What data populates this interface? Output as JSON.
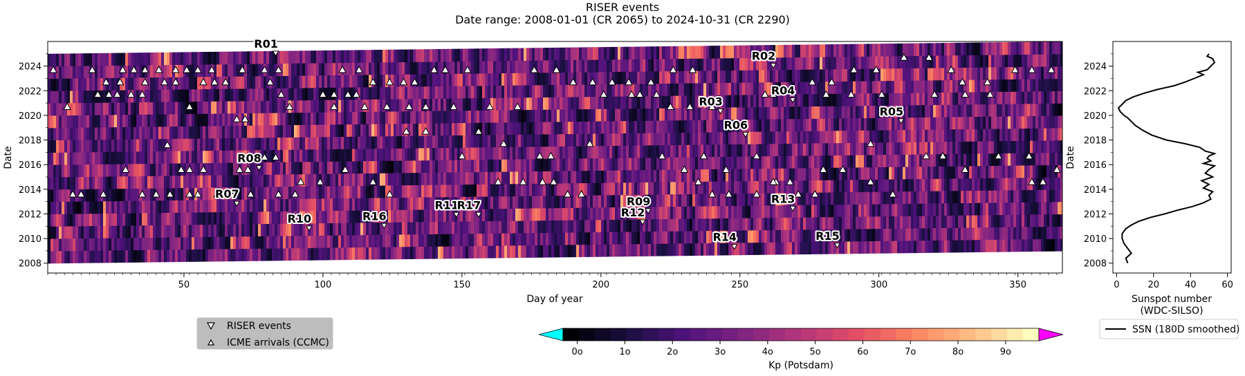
{
  "title_line1": "RISER events",
  "title_line2": "Date range: 2008-01-01 (CR 2065) to 2024-10-31 (CR 2290)",
  "colors": {
    "kp_low": "#000004",
    "kp_high": "#fcfdbf",
    "under": "#00ffff",
    "over": "#ff00ff",
    "ssn_line": "#000000",
    "legend_bg": "#bdbdbd"
  },
  "chart_data": [
    {
      "type": "heatmap",
      "name": "Kp heatmap with events",
      "xlabel": "Day of year",
      "ylabel": "Date",
      "xlim": [
        1,
        366
      ],
      "ylim": [
        2007.2,
        2026.0
      ],
      "x_ticks": [
        50,
        100,
        150,
        200,
        250,
        300,
        350
      ],
      "x_tick_labels": [
        "50",
        "100",
        "150",
        "200",
        "250",
        "300",
        "350"
      ],
      "y_ticks": [
        2008,
        2010,
        2012,
        2014,
        2016,
        2018,
        2020,
        2022,
        2024
      ],
      "y_tick_labels": [
        "2008",
        "2010",
        "2012",
        "2014",
        "2016",
        "2018",
        "2020",
        "2022",
        "2024"
      ],
      "grid": false,
      "riser_events": [
        {
          "label": "R01",
          "day": 83,
          "year": 2025.0
        },
        {
          "label": "R02",
          "day": 262,
          "year": 2024.0
        },
        {
          "label": "R03",
          "day": 243,
          "year": 2020.3
        },
        {
          "label": "R04",
          "day": 269,
          "year": 2021.2
        },
        {
          "label": "R05",
          "day": 308,
          "year": 2019.5
        },
        {
          "label": "R06",
          "day": 252,
          "year": 2018.4
        },
        {
          "label": "R07",
          "day": 69,
          "year": 2012.8
        },
        {
          "label": "R08",
          "day": 77,
          "year": 2015.7
        },
        {
          "label": "R09",
          "day": 217,
          "year": 2012.2
        },
        {
          "label": "R10",
          "day": 95,
          "year": 2010.8
        },
        {
          "label": "R11",
          "day": 148,
          "year": 2011.9
        },
        {
          "label": "R12",
          "day": 215,
          "year": 2011.3
        },
        {
          "label": "R13",
          "day": 269,
          "year": 2012.4
        },
        {
          "label": "R14",
          "day": 248,
          "year": 2009.3
        },
        {
          "label": "R15",
          "day": 285,
          "year": 2009.4
        },
        {
          "label": "R16",
          "day": 122,
          "year": 2011.0
        },
        {
          "label": "R17",
          "day": 156,
          "year": 2011.9
        }
      ],
      "icme_arrivals": [
        [
          3,
          2023.7
        ],
        [
          10,
          2013.6
        ],
        [
          13,
          2013.6
        ],
        [
          17,
          2023.7
        ],
        [
          22,
          2022.7
        ],
        [
          27,
          2022.7
        ],
        [
          19,
          2021.7
        ],
        [
          23,
          2021.7
        ],
        [
          28,
          2023.7
        ],
        [
          32,
          2023.7
        ],
        [
          36,
          2023.7
        ],
        [
          41,
          2023.7
        ],
        [
          47,
          2023.7
        ],
        [
          51,
          2023.7
        ],
        [
          55,
          2023.7
        ],
        [
          60,
          2023.7
        ],
        [
          8,
          2020.7
        ],
        [
          36,
          2022.7
        ],
        [
          43,
          2022.7
        ],
        [
          47,
          2022.7
        ],
        [
          57,
          2022.7
        ],
        [
          61,
          2022.7
        ],
        [
          65,
          2022.7
        ],
        [
          71,
          2023.7
        ],
        [
          79,
          2023.7
        ],
        [
          84,
          2023.7
        ],
        [
          26,
          2021.7
        ],
        [
          31,
          2021.7
        ],
        [
          35,
          2021.7
        ],
        [
          52,
          2020.7
        ],
        [
          69,
          2019.7
        ],
        [
          72,
          2019.7
        ],
        [
          81,
          2022.7
        ],
        [
          85,
          2021.7
        ],
        [
          88,
          2020.7
        ],
        [
          29,
          2015.6
        ],
        [
          21,
          2013.6
        ],
        [
          35,
          2013.6
        ],
        [
          40,
          2013.6
        ],
        [
          45,
          2013.6
        ],
        [
          52,
          2013.6
        ],
        [
          55,
          2013.6
        ],
        [
          62,
          2013.6
        ],
        [
          67,
          2013.6
        ],
        [
          74,
          2013.6
        ],
        [
          84,
          2013.6
        ],
        [
          90,
          2013.6
        ],
        [
          44,
          2017.6
        ],
        [
          49,
          2015.6
        ],
        [
          52,
          2015.6
        ],
        [
          57,
          2015.6
        ],
        [
          70,
          2015.6
        ],
        [
          73,
          2015.6
        ],
        [
          79,
          2016.6
        ],
        [
          83,
          2016.6
        ],
        [
          92,
          2014.6
        ],
        [
          99,
          2014.6
        ],
        [
          100,
          2021.7
        ],
        [
          104,
          2021.7
        ],
        [
          109,
          2021.7
        ],
        [
          112,
          2021.7
        ],
        [
          107,
          2023.7
        ],
        [
          113,
          2023.7
        ],
        [
          118,
          2022.7
        ],
        [
          124,
          2022.7
        ],
        [
          129,
          2022.7
        ],
        [
          133,
          2022.7
        ],
        [
          140,
          2023.7
        ],
        [
          144,
          2023.7
        ],
        [
          152,
          2023.7
        ],
        [
          104,
          2020.7
        ],
        [
          115,
          2020.7
        ],
        [
          123,
          2020.7
        ],
        [
          131,
          2020.7
        ],
        [
          137,
          2020.7
        ],
        [
          147,
          2020.7
        ],
        [
          160,
          2020.7
        ],
        [
          170,
          2020.7
        ],
        [
          130,
          2018.7
        ],
        [
          137,
          2018.7
        ],
        [
          150,
          2016.7
        ],
        [
          156,
          2018.7
        ],
        [
          165,
          2017.7
        ],
        [
          178,
          2016.7
        ],
        [
          182,
          2016.7
        ],
        [
          196,
          2017.7
        ],
        [
          108,
          2015.6
        ],
        [
          118,
          2014.6
        ],
        [
          124,
          2013.6
        ],
        [
          163,
          2014.6
        ],
        [
          172,
          2014.6
        ],
        [
          179,
          2014.6
        ],
        [
          183,
          2014.6
        ],
        [
          188,
          2013.6
        ],
        [
          193,
          2013.6
        ],
        [
          176,
          2023.7
        ],
        [
          184,
          2023.7
        ],
        [
          190,
          2022.7
        ],
        [
          197,
          2022.7
        ],
        [
          204,
          2022.7
        ],
        [
          210,
          2022.7
        ],
        [
          218,
          2022.7
        ],
        [
          226,
          2023.7
        ],
        [
          233,
          2023.7
        ],
        [
          201,
          2021.7
        ],
        [
          211,
          2021.7
        ],
        [
          214,
          2021.7
        ],
        [
          220,
          2021.7
        ],
        [
          225,
          2020.7
        ],
        [
          232,
          2020.7
        ],
        [
          240,
          2020.7
        ],
        [
          259,
          2021.7
        ],
        [
          262,
          2021.7
        ],
        [
          222,
          2016.7
        ],
        [
          230,
          2015.6
        ],
        [
          237,
          2016.7
        ],
        [
          245,
          2015.6
        ],
        [
          256,
          2016.7
        ],
        [
          263,
          2014.6
        ],
        [
          268,
          2014.6
        ],
        [
          280,
          2015.6
        ],
        [
          287,
          2015.6
        ],
        [
          235,
          2014.6
        ],
        [
          240,
          2013.6
        ],
        [
          246,
          2013.6
        ],
        [
          256,
          2013.6
        ],
        [
          262,
          2014.6
        ],
        [
          271,
          2013.6
        ],
        [
          277,
          2013.6
        ],
        [
          297,
          2014.6
        ],
        [
          305,
          2013.6
        ],
        [
          276,
          2022.7
        ],
        [
          283,
          2022.7
        ],
        [
          291,
          2023.7
        ],
        [
          299,
          2023.7
        ],
        [
          309,
          2024.7
        ],
        [
          318,
          2024.7
        ],
        [
          326,
          2023.7
        ],
        [
          330,
          2022.7
        ],
        [
          339,
          2022.7
        ],
        [
          281,
          2021.7
        ],
        [
          290,
          2021.7
        ],
        [
          301,
          2021.7
        ],
        [
          320,
          2021.7
        ],
        [
          331,
          2021.7
        ],
        [
          340,
          2021.7
        ],
        [
          349,
          2023.7
        ],
        [
          355,
          2023.7
        ],
        [
          362,
          2023.7
        ],
        [
          297,
          2017.7
        ],
        [
          317,
          2016.7
        ],
        [
          323,
          2016.7
        ],
        [
          331,
          2015.6
        ],
        [
          343,
          2016.7
        ],
        [
          354,
          2016.7
        ],
        [
          355,
          2014.6
        ],
        [
          364,
          2015.6
        ],
        [
          359,
          2014.6
        ]
      ]
    },
    {
      "type": "line",
      "name": "SSN side panel",
      "xlabel": "Sunspot number",
      "xlabel2": "(WDC-SILSO)",
      "ylabel": "Date",
      "xlim": [
        -2,
        62
      ],
      "ylim": [
        2007.2,
        2026.0
      ],
      "x_ticks": [
        0,
        20,
        40,
        60
      ],
      "x_tick_labels": [
        "0",
        "20",
        "40",
        "60"
      ],
      "y_ticks": [
        2008,
        2010,
        2012,
        2014,
        2016,
        2018,
        2020,
        2022,
        2024
      ],
      "y_tick_labels": [
        "2008",
        "2010",
        "2012",
        "2014",
        "2016",
        "2018",
        "2020",
        "2022",
        "2024"
      ],
      "series": [
        {
          "name": "SSN (180D smoothed)",
          "x": [
            6,
            5,
            8,
            6,
            4,
            3,
            3,
            5,
            8,
            12,
            18,
            26,
            33,
            41,
            47,
            51,
            50,
            52,
            47,
            50,
            46,
            52,
            48,
            50,
            53,
            47,
            51,
            49,
            50,
            53,
            48,
            45,
            37,
            27,
            19,
            14,
            10,
            8,
            6,
            4,
            2,
            1,
            3,
            5,
            9,
            15,
            22,
            31,
            37,
            42,
            47,
            44,
            49,
            51,
            53,
            52,
            49,
            50
          ],
          "y": [
            2008.0,
            2008.4,
            2008.8,
            2009.2,
            2009.6,
            2010.0,
            2010.4,
            2010.8,
            2011.1,
            2011.4,
            2011.7,
            2012.0,
            2012.3,
            2012.6,
            2012.9,
            2013.2,
            2013.5,
            2013.8,
            2014.1,
            2014.4,
            2014.7,
            2015.0,
            2015.3,
            2015.6,
            2015.9,
            2016.1,
            2016.3,
            2016.5,
            2016.7,
            2016.9,
            2017.1,
            2017.4,
            2017.7,
            2018.0,
            2018.4,
            2018.8,
            2019.2,
            2019.5,
            2019.8,
            2020.0,
            2020.3,
            2020.6,
            2020.9,
            2021.2,
            2021.5,
            2021.8,
            2022.1,
            2022.4,
            2022.7,
            2023.0,
            2023.3,
            2023.5,
            2023.7,
            2024.0,
            2024.3,
            2024.6,
            2024.8,
            2025.0
          ]
        }
      ]
    },
    {
      "type": "colorbar",
      "label": "Kp (Potsdam)",
      "ticks": [
        0,
        1,
        2,
        3,
        4,
        5,
        6,
        7,
        8,
        9
      ],
      "tick_labels": [
        "0o",
        "1o",
        "2o",
        "3o",
        "4o",
        "5o",
        "6o",
        "7o",
        "8o",
        "9o"
      ],
      "range": [
        -0.3,
        9.7
      ]
    }
  ],
  "legend_main": {
    "riser_label": "RISER events",
    "icme_label": "ICME arrivals (CCMC)"
  },
  "legend_ssn": {
    "label": "SSN (180D smoothed)"
  }
}
